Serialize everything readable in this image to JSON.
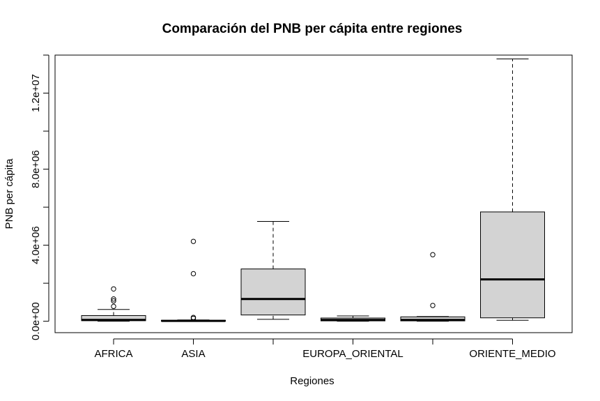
{
  "chart_data": {
    "type": "boxplot",
    "title": "Comparación del PNB per cápita entre regiones",
    "xlabel": "Regiones",
    "ylabel": "PNB per cápita",
    "ylim": [
      -600000,
      14000000
    ],
    "yticks": [
      0,
      2000000,
      4000000,
      6000000,
      8000000,
      10000000,
      12000000,
      14000000
    ],
    "ytick_labels": [
      "0.0e+00",
      "",
      "4.0e+06",
      "",
      "8.0e+06",
      "",
      "1.2e+07",
      ""
    ],
    "categories": [
      "AFRICA",
      "ASIA",
      "",
      "EUROPA_ORIENTAL",
      "",
      "ORIENTE_MEDIO"
    ],
    "boxes": [
      {
        "name": "AFRICA",
        "whisker_low": 0,
        "q1": 30000,
        "median": 70000,
        "q3": 300000,
        "whisker_high": 620000,
        "outliers": [
          780000,
          1070000,
          1170000,
          1700000
        ]
      },
      {
        "name": "ASIA",
        "whisker_low": 0,
        "q1": 10000,
        "median": 20000,
        "q3": 50000,
        "whisker_high": 70000,
        "outliers": [
          150000,
          200000,
          2500000,
          4200000
        ]
      },
      {
        "name": "",
        "whisker_low": 100000,
        "q1": 330000,
        "median": 1170000,
        "q3": 2750000,
        "whisker_high": 5250000,
        "outliers": []
      },
      {
        "name": "EUROPA_ORIENTAL",
        "whisker_low": 0,
        "q1": 20000,
        "median": 70000,
        "q3": 170000,
        "whisker_high": 280000,
        "outliers": []
      },
      {
        "name": "",
        "whisker_low": 0,
        "q1": 20000,
        "median": 70000,
        "q3": 230000,
        "whisker_high": 250000,
        "outliers": [
          830000,
          3500000
        ]
      },
      {
        "name": "ORIENTE_MEDIO",
        "whisker_low": 50000,
        "q1": 180000,
        "median": 2200000,
        "q3": 5750000,
        "whisker_high": 13800000,
        "outliers": []
      }
    ]
  }
}
